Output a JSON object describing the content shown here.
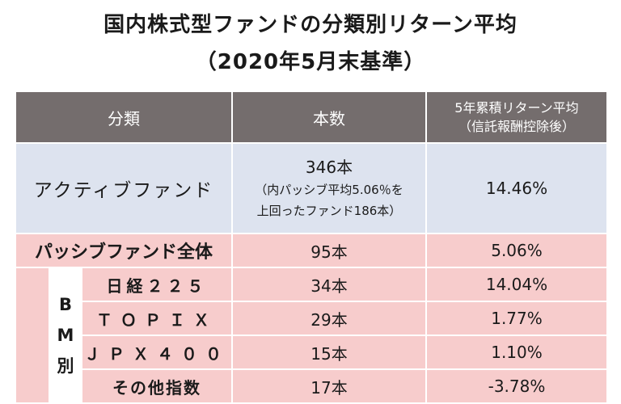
{
  "title": {
    "line1": "国内株式型ファンドの分類別リターン平均",
    "line2": "（2020年5月末基準）"
  },
  "header": {
    "category": "分類",
    "count": "本数",
    "return_line1": "5年累積リターン平均",
    "return_line2": "（信託報酬控除後）"
  },
  "active": {
    "label": "アクティブファンド",
    "count": "346本",
    "note_line1": "（内パッシブ平均5.06％を",
    "note_line2": "上回ったファンド186本）",
    "return": "14.46%"
  },
  "passive": {
    "label": "パッシブファンド全体",
    "count": "95本",
    "return": "5.06%"
  },
  "bm_label": [
    "B",
    "M",
    "別"
  ],
  "sub_rows": [
    {
      "label": "日経２２５",
      "count": "34本",
      "return": "14.04%"
    },
    {
      "label": "ＴＯＰＩＸ",
      "count": "29本",
      "return": "1.77%"
    },
    {
      "label": "ＪＰＸ４００",
      "count": "15本",
      "return": "1.10%"
    },
    {
      "label": "その他指数",
      "count": "17本",
      "return": "-3.78%"
    }
  ],
  "colors": {
    "header_bg": "#746d6d",
    "active_bg": "#dde3ef",
    "passive_bg": "#f7cccc"
  }
}
